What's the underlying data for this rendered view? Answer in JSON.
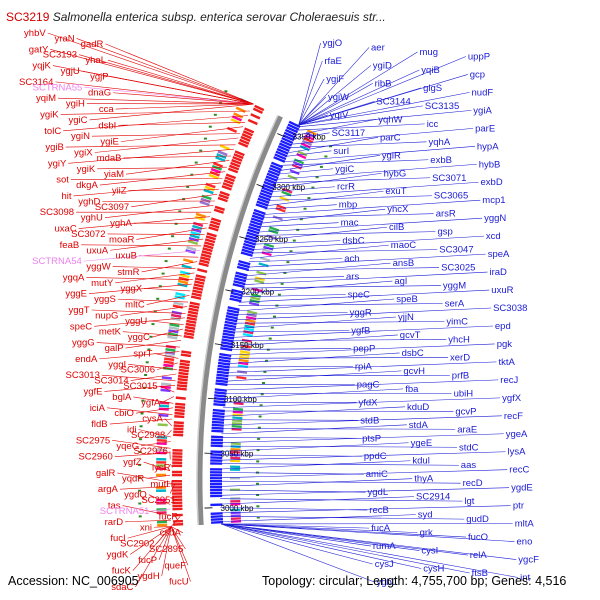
{
  "header": {
    "accession_id": "SC3219",
    "organism": "Salmonella enterica subsp. enterica serovar Choleraesuis str..."
  },
  "footer": {
    "accession": "Accession: NC_006905",
    "topology": "Topology: circular; Length: 4,755,700 bp; Genes: 4,516"
  },
  "colors": {
    "left_labels": "#e00000",
    "right_labels": "#1a1ad6",
    "rna_labels": "#ee82ee",
    "backbone": "#8a8a8a",
    "left_ticks": "#2e8b22",
    "right_ticks": "#1a1ad6"
  },
  "scale_ticks": [
    {
      "label": "3350 kbp",
      "kbp": 3350
    },
    {
      "label": "3300 kbp",
      "kbp": 3300
    },
    {
      "label": "3250 kbp",
      "kbp": 3250
    },
    {
      "label": "3200 kbp",
      "kbp": 3200
    },
    {
      "label": "3150 kbp",
      "kbp": 3150
    },
    {
      "label": "3100 kbp",
      "kbp": 3100
    },
    {
      "label": "3050 kbp",
      "kbp": 3050
    },
    {
      "label": "3000 kbp",
      "kbp": 3000
    }
  ],
  "left_labels": [
    {
      "text": "yhbV",
      "rna": false
    },
    {
      "text": "yraN",
      "rna": false
    },
    {
      "text": "gadR",
      "rna": false
    },
    {
      "text": "gatY",
      "rna": false
    },
    {
      "text": "SC3193",
      "rna": false
    },
    {
      "text": "yhaL",
      "rna": false
    },
    {
      "text": "yqjK",
      "rna": false
    },
    {
      "text": "ygjU",
      "rna": false
    },
    {
      "text": "ygjP",
      "rna": false
    },
    {
      "text": "SC3164",
      "rna": false
    },
    {
      "text": "SCTRNA55",
      "rna": true
    },
    {
      "text": "dnaG",
      "rna": false
    },
    {
      "text": "yqiM",
      "rna": false
    },
    {
      "text": "ygiH",
      "rna": false
    },
    {
      "text": "cca",
      "rna": false
    },
    {
      "text": "ygiK",
      "rna": false
    },
    {
      "text": "ygiC",
      "rna": false
    },
    {
      "text": "dsbI",
      "rna": false
    },
    {
      "text": "tolC",
      "rna": false
    },
    {
      "text": "ygiN",
      "rna": false
    },
    {
      "text": "ygiE",
      "rna": false
    },
    {
      "text": "ygiB",
      "rna": false
    },
    {
      "text": "ygiX",
      "rna": false
    },
    {
      "text": "mdaB",
      "rna": false
    },
    {
      "text": "ygiY",
      "rna": false
    },
    {
      "text": "ygiK",
      "rna": false
    },
    {
      "text": "yiaM",
      "rna": false
    },
    {
      "text": "sot",
      "rna": false
    },
    {
      "text": "dkgA",
      "rna": false
    },
    {
      "text": "yiiZ",
      "rna": false
    },
    {
      "text": "hit",
      "rna": false
    },
    {
      "text": "yghD",
      "rna": false
    },
    {
      "text": "SC3097",
      "rna": false
    },
    {
      "text": "SC3098",
      "rna": false
    },
    {
      "text": "yghU",
      "rna": false
    },
    {
      "text": "yghA",
      "rna": false
    },
    {
      "text": "uxaC",
      "rna": false
    },
    {
      "text": "SC3072",
      "rna": false
    },
    {
      "text": "moaR",
      "rna": false
    },
    {
      "text": "feaB",
      "rna": false
    },
    {
      "text": "uxuA",
      "rna": false
    },
    {
      "text": "uxuB",
      "rna": false
    },
    {
      "text": "SCTRNA54",
      "rna": true
    },
    {
      "text": "yggW",
      "rna": false
    },
    {
      "text": "stmR",
      "rna": false
    },
    {
      "text": "ygqA",
      "rna": false
    },
    {
      "text": "mutY",
      "rna": false
    },
    {
      "text": "yggX",
      "rna": false
    },
    {
      "text": "yggE",
      "rna": false
    },
    {
      "text": "yggS",
      "rna": false
    },
    {
      "text": "mltC",
      "rna": false
    },
    {
      "text": "yggT",
      "rna": false
    },
    {
      "text": "nupG",
      "rna": false
    },
    {
      "text": "yggU",
      "rna": false
    },
    {
      "text": "speC",
      "rna": false
    },
    {
      "text": "metK",
      "rna": false
    },
    {
      "text": "yggC",
      "rna": false
    },
    {
      "text": "yggG",
      "rna": false
    },
    {
      "text": "galP",
      "rna": false
    },
    {
      "text": "sprT",
      "rna": false
    },
    {
      "text": "endA",
      "rna": false
    },
    {
      "text": "yggI",
      "rna": false
    },
    {
      "text": "SC3006",
      "rna": false
    },
    {
      "text": "SC3013",
      "rna": false
    },
    {
      "text": "SC3014",
      "rna": false
    },
    {
      "text": "SC3015",
      "rna": false
    },
    {
      "text": "ygfE",
      "rna": false
    },
    {
      "text": "bglA",
      "rna": false
    },
    {
      "text": "ygfA",
      "rna": false
    },
    {
      "text": "iciA",
      "rna": false
    },
    {
      "text": "cbiO",
      "rna": false
    },
    {
      "text": "cysA",
      "rna": false
    },
    {
      "text": "fldB",
      "rna": false
    },
    {
      "text": "idi",
      "rna": false
    },
    {
      "text": "SC2988",
      "rna": false
    },
    {
      "text": "SC2975",
      "rna": false
    },
    {
      "text": "yqeG",
      "rna": false
    },
    {
      "text": "SC2976",
      "rna": false
    },
    {
      "text": "SC2960",
      "rna": false
    },
    {
      "text": "ygfZ",
      "rna": false
    },
    {
      "text": "lysR",
      "rna": false
    },
    {
      "text": "galR",
      "rna": false
    },
    {
      "text": "yqdR",
      "rna": false
    },
    {
      "text": "mutH",
      "rna": false
    },
    {
      "text": "argA",
      "rna": false
    },
    {
      "text": "ygdQ",
      "rna": false
    },
    {
      "text": "SC2951",
      "rna": false
    },
    {
      "text": "tas",
      "rna": false
    },
    {
      "text": "SCTRNA51",
      "rna": true
    },
    {
      "text": "fucR",
      "rna": false
    },
    {
      "text": "rarD",
      "rna": false
    },
    {
      "text": "xni",
      "rna": false
    },
    {
      "text": "csdA",
      "rna": false
    },
    {
      "text": "fucI",
      "rna": false
    },
    {
      "text": "SC2902",
      "rna": false
    },
    {
      "text": "SC2895",
      "rna": false
    },
    {
      "text": "ygdK",
      "rna": false
    },
    {
      "text": "fucP",
      "rna": false
    },
    {
      "text": "queF",
      "rna": false
    },
    {
      "text": "fucK",
      "rna": false
    },
    {
      "text": "ygdH",
      "rna": false
    },
    {
      "text": "fucU",
      "rna": false
    },
    {
      "text": "sdaC",
      "rna": false
    }
  ],
  "right_labels": [
    {
      "text": "ygjO"
    },
    {
      "text": "aer"
    },
    {
      "text": "mug"
    },
    {
      "text": "uppP"
    },
    {
      "text": "rfaE"
    },
    {
      "text": "ygiD"
    },
    {
      "text": "yqiB"
    },
    {
      "text": "gcp"
    },
    {
      "text": "ygiF"
    },
    {
      "text": "ribB"
    },
    {
      "text": "glgS"
    },
    {
      "text": "nudF"
    },
    {
      "text": "ygiW"
    },
    {
      "text": "SC3144"
    },
    {
      "text": "SC3135"
    },
    {
      "text": "ygiA"
    },
    {
      "text": "yqiV"
    },
    {
      "text": "yqhW"
    },
    {
      "text": "icc"
    },
    {
      "text": "parE"
    },
    {
      "text": "SC3117"
    },
    {
      "text": "parC"
    },
    {
      "text": "yqhA"
    },
    {
      "text": "hypA"
    },
    {
      "text": "surI"
    },
    {
      "text": "ygiR"
    },
    {
      "text": "exbB"
    },
    {
      "text": "hybB"
    },
    {
      "text": "ygiC"
    },
    {
      "text": "hybG"
    },
    {
      "text": "SC3071"
    },
    {
      "text": "exbD"
    },
    {
      "text": "rcrR"
    },
    {
      "text": "exuT"
    },
    {
      "text": "SC3065"
    },
    {
      "text": "mcp1"
    },
    {
      "text": "mbp"
    },
    {
      "text": "yhcX"
    },
    {
      "text": "arsR"
    },
    {
      "text": "yggN"
    },
    {
      "text": "mac"
    },
    {
      "text": "cilB"
    },
    {
      "text": "gsp"
    },
    {
      "text": "xcd"
    },
    {
      "text": "dsbC"
    },
    {
      "text": "maoC"
    },
    {
      "text": "SC3047"
    },
    {
      "text": "speA"
    },
    {
      "text": "ach"
    },
    {
      "text": "ansB"
    },
    {
      "text": "SC3025"
    },
    {
      "text": "iraD"
    },
    {
      "text": "ars"
    },
    {
      "text": "agl"
    },
    {
      "text": "yggM"
    },
    {
      "text": "uxuR"
    },
    {
      "text": "speC"
    },
    {
      "text": "speB"
    },
    {
      "text": "serA"
    },
    {
      "text": "SC3038"
    },
    {
      "text": "yggR"
    },
    {
      "text": "yjjN"
    },
    {
      "text": "yimC"
    },
    {
      "text": "epd"
    },
    {
      "text": "ygfB"
    },
    {
      "text": "gcvT"
    },
    {
      "text": "yhcH"
    },
    {
      "text": "pgk"
    },
    {
      "text": "pepP"
    },
    {
      "text": "dsbC"
    },
    {
      "text": "xerD"
    },
    {
      "text": "tktA"
    },
    {
      "text": "rpiA"
    },
    {
      "text": "gcvH"
    },
    {
      "text": "prfB"
    },
    {
      "text": "recJ"
    },
    {
      "text": "pagC"
    },
    {
      "text": "fba"
    },
    {
      "text": "ubiH"
    },
    {
      "text": "ygfX"
    },
    {
      "text": "yfdX"
    },
    {
      "text": "kduD"
    },
    {
      "text": "gcvP"
    },
    {
      "text": "recF"
    },
    {
      "text": "stdB"
    },
    {
      "text": "stdA"
    },
    {
      "text": "araE"
    },
    {
      "text": "ygeA"
    },
    {
      "text": "ptsP"
    },
    {
      "text": "ygeE"
    },
    {
      "text": "stdC"
    },
    {
      "text": "lysA"
    },
    {
      "text": "ppdC"
    },
    {
      "text": "kdul"
    },
    {
      "text": "aas"
    },
    {
      "text": "recC"
    },
    {
      "text": "amiC"
    },
    {
      "text": "thyA"
    },
    {
      "text": "recD"
    },
    {
      "text": "ygdE"
    },
    {
      "text": "ygdL"
    },
    {
      "text": "SC2914"
    },
    {
      "text": "lgt"
    },
    {
      "text": "ptr"
    },
    {
      "text": "recB"
    },
    {
      "text": "syd"
    },
    {
      "text": "gudD"
    },
    {
      "text": "mltA"
    },
    {
      "text": "fucA"
    },
    {
      "text": "grk"
    },
    {
      "text": "fucO"
    },
    {
      "text": "eno"
    },
    {
      "text": "rumA"
    },
    {
      "text": "cysI"
    },
    {
      "text": "relA"
    },
    {
      "text": "ygcF"
    },
    {
      "text": "cysJ"
    },
    {
      "text": "cysH"
    },
    {
      "text": "ftsB"
    },
    {
      "text": "int"
    },
    {
      "text": "ygbJ"
    }
  ]
}
